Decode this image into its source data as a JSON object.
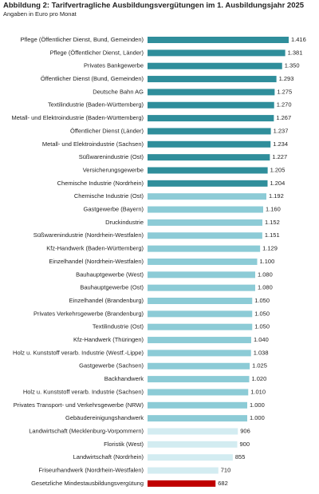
{
  "chart_data": {
    "type": "barh",
    "title": "Abbildung 2: Tarifvertragliche Ausbildungsvergütungen im 1. Ausbildungsjahr 2025",
    "subtitle": "Angaben in Euro pro Monat",
    "categories": [
      "Pflege (Öffentlicher Dienst, Bund, Gemeinden)",
      "Pflege (Öffentlicher Dienst, Länder)",
      "Privates Bankgewerbe",
      "Öffentlicher Dienst (Bund, Gemeinden)",
      "Deutsche Bahn AG",
      "Textilindustrie (Baden-Württemberg)",
      "Metall- und Elektroindustrie (Baden-Württemberg)",
      "Öffentlicher Dienst (Länder)",
      "Metall- und Elektroindustrie (Sachsen)",
      "Süßwarenindustrie (Ost)",
      "Versicherungsgewerbe",
      "Chemische Industrie (Nordrhein)",
      "Chemische Industrie (Ost)",
      "Gastgewerbe (Bayern)",
      "Druckindustrie",
      "Süßwarenindustrie (Nordrhein-Westfalen)",
      "Kfz-Handwerk (Baden-Württemberg)",
      "Einzelhandel (Nordrhein-Westfalen)",
      "Bauhauptgewerbe (West)",
      "Bauhauptgewerbe (Ost)",
      "Einzelhandel (Brandenburg)",
      "Privates Verkehrsgewerbe  (Brandenburg)",
      "Textilindustrie (Ost)",
      "Kfz-Handwerk (Thüringen)",
      "Holz u. Kunststoff verarb. Industrie (Westf.-Lippe)",
      "Gastgewerbe (Sachsen)",
      "Backhandwerk",
      "Holz u. Kunststoff verarb. Industrie (Sachsen)",
      "Privates Transport- und Verkehrsgewerbe (NRW)",
      "Gebäudereinigungshandwerk",
      "Landwirtschaft (Mecklenburg-Vorpommern)",
      "Floristik (West)",
      "Landwirtschaft (Nordrhein)",
      "Friseurhandwerk (Nordrhein-Westfalen)",
      "Gesetzliche Mindestausbildungsvergütung"
    ],
    "values": [
      1416,
      1381,
      1350,
      1293,
      1275,
      1270,
      1267,
      1237,
      1234,
      1227,
      1205,
      1204,
      1192,
      1160,
      1152,
      1151,
      1129,
      1100,
      1080,
      1080,
      1050,
      1050,
      1050,
      1040,
      1038,
      1025,
      1020,
      1010,
      1000,
      1000,
      906,
      900,
      855,
      710,
      682
    ],
    "value_labels": [
      "1.416",
      "1.381",
      "1.350",
      "1.293",
      "1.275",
      "1.270",
      "1.267",
      "1.237",
      "1.234",
      "1.227",
      "1.205",
      "1.204",
      "1.192",
      "1.160",
      "1.152",
      "1.151",
      "1.129",
      "1.100",
      "1.080",
      "1.080",
      "1.050",
      "1.050",
      "1.050",
      "1.040",
      "1.038",
      "1.025",
      "1.020",
      "1.010",
      "1.000",
      "1.000",
      "906",
      "900",
      "855",
      "710",
      "682"
    ],
    "colors": [
      "#2f8e9b",
      "#2f8e9b",
      "#2f8e9b",
      "#2f8e9b",
      "#2f8e9b",
      "#2f8e9b",
      "#2f8e9b",
      "#2f8e9b",
      "#2f8e9b",
      "#2f8e9b",
      "#2f8e9b",
      "#2f8e9b",
      "#8ccbd6",
      "#8ccbd6",
      "#8ccbd6",
      "#8ccbd6",
      "#8ccbd6",
      "#8ccbd6",
      "#8ccbd6",
      "#8ccbd6",
      "#8ccbd6",
      "#8ccbd6",
      "#8ccbd6",
      "#8ccbd6",
      "#8ccbd6",
      "#8ccbd6",
      "#8ccbd6",
      "#8ccbd6",
      "#8ccbd6",
      "#8ccbd6",
      "#d3ecf1",
      "#d3ecf1",
      "#d3ecf1",
      "#d3ecf1",
      "#c00000"
    ]
  }
}
